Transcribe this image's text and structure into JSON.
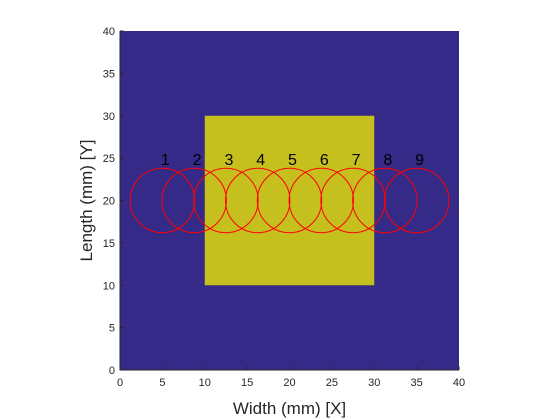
{
  "chart_data": {
    "type": "heatmap",
    "title": "",
    "xlabel": "Width (mm) [X]",
    "ylabel": "Length (mm) [Y]",
    "xlim": [
      0,
      40
    ],
    "ylim": [
      0,
      40
    ],
    "xticks": [
      "0",
      "5",
      "10",
      "15",
      "20",
      "25",
      "30",
      "35",
      "40"
    ],
    "yticks": [
      "0",
      "5",
      "10",
      "15",
      "20",
      "25",
      "30",
      "35",
      "40"
    ],
    "grid": false,
    "legend": "none",
    "background": {
      "x": [
        0,
        40
      ],
      "y": [
        0,
        40
      ],
      "color": "#352a87"
    },
    "region": {
      "x": [
        10,
        30
      ],
      "y": [
        10,
        30
      ],
      "color": "#c5c01d"
    },
    "circles": {
      "color": "#ff0000",
      "radius": 3.8,
      "label_y": 25,
      "items": [
        {
          "label": "1",
          "x": 5.0,
          "y": 20
        },
        {
          "label": "2",
          "x": 8.75,
          "y": 20
        },
        {
          "label": "3",
          "x": 12.5,
          "y": 20
        },
        {
          "label": "4",
          "x": 16.25,
          "y": 20
        },
        {
          "label": "5",
          "x": 20.0,
          "y": 20
        },
        {
          "label": "6",
          "x": 23.75,
          "y": 20
        },
        {
          "label": "7",
          "x": 27.5,
          "y": 20
        },
        {
          "label": "8",
          "x": 31.25,
          "y": 20
        },
        {
          "label": "9",
          "x": 35.0,
          "y": 20
        }
      ]
    }
  }
}
